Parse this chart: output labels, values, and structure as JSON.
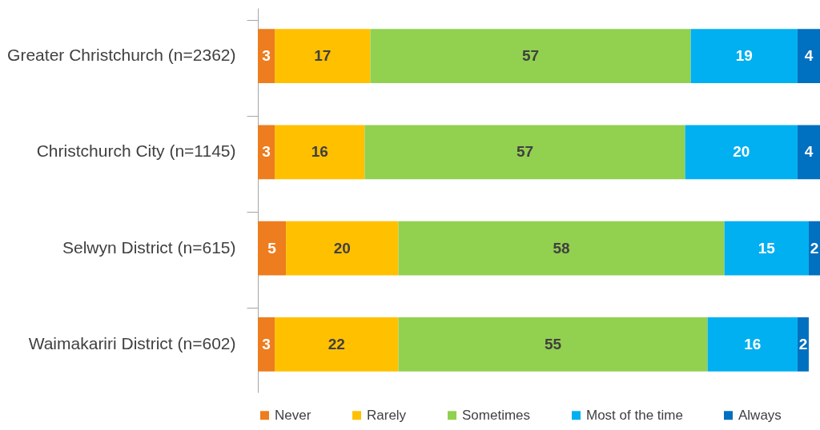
{
  "chart_data": {
    "type": "bar",
    "orientation": "horizontal",
    "stacked": true,
    "data_labels": true,
    "legend": "bottom",
    "tick_labels": "y",
    "xlim": [
      0,
      100
    ],
    "categories": [
      "Greater Christchurch (n=2362)",
      "Christchurch City (n=1145)",
      "Selwyn District (n=615)",
      "Waimakariri District (n=602)"
    ],
    "series": [
      {
        "name": "Never",
        "color": "#ed7d1f",
        "values": [
          3,
          3,
          5,
          3
        ]
      },
      {
        "name": "Rarely",
        "color": "#ffc000",
        "values": [
          17,
          16,
          20,
          22
        ]
      },
      {
        "name": "Sometimes",
        "color": "#92d050",
        "values": [
          57,
          57,
          58,
          55
        ]
      },
      {
        "name": "Most of the time",
        "color": "#00b0f0",
        "values": [
          19,
          20,
          15,
          16
        ]
      },
      {
        "name": "Always",
        "color": "#0070c0",
        "values": [
          4,
          4,
          2,
          2
        ]
      }
    ]
  }
}
